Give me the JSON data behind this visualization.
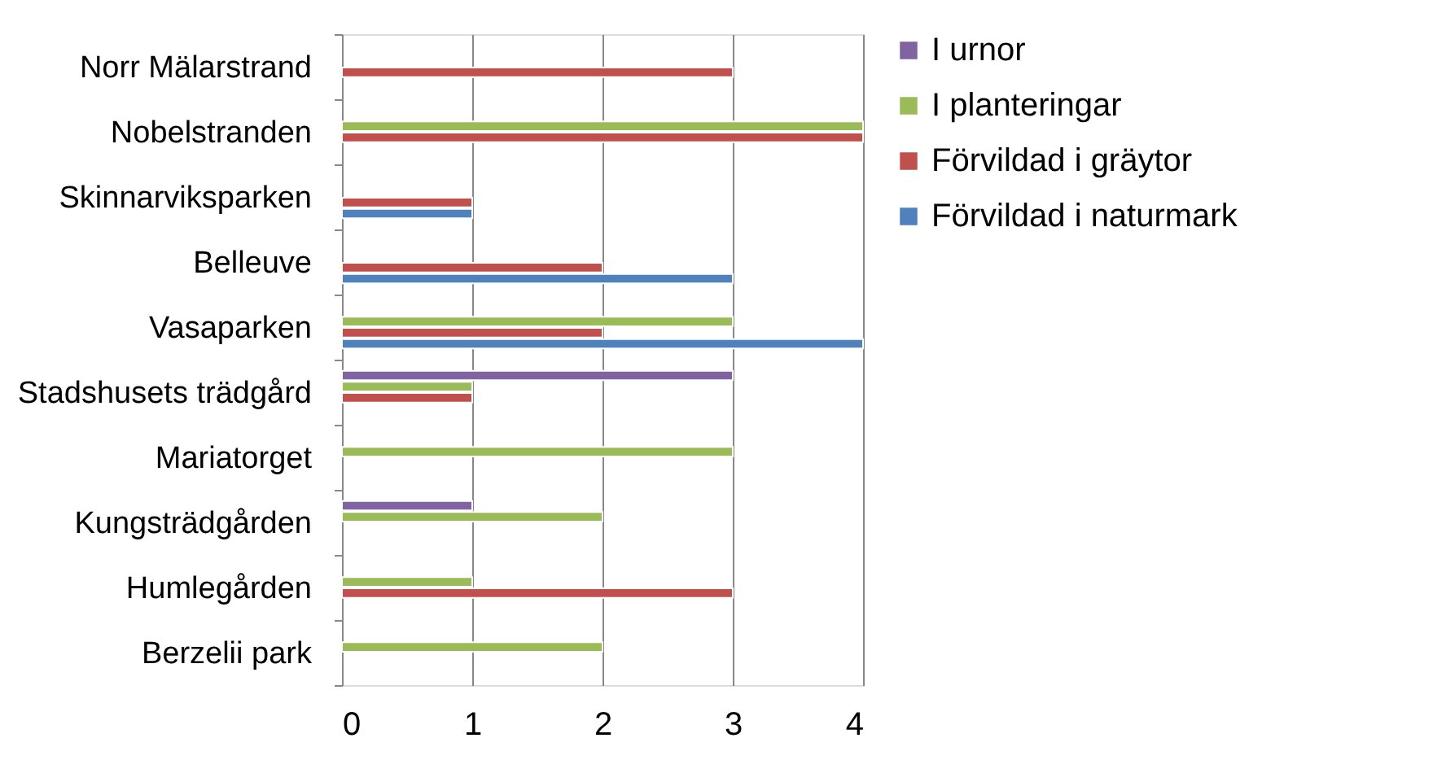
{
  "chart_data": {
    "type": "bar",
    "orientation": "horizontal",
    "categories": [
      "Norr Mälarstrand",
      "Nobelstranden",
      "Skinnarviksparken",
      "Belleuve",
      "Vasaparken",
      "Stadshusets trädgård",
      "Mariatorget",
      "Kungsträdgården",
      "Humlegården",
      "Berzelii park"
    ],
    "series": [
      {
        "name": "I urnor",
        "color": "#8064a2",
        "values": [
          null,
          null,
          null,
          null,
          null,
          3,
          null,
          1,
          null,
          null
        ]
      },
      {
        "name": "I planteringar",
        "color": "#9bbb59",
        "values": [
          null,
          4,
          null,
          null,
          3,
          1,
          3,
          2,
          1,
          2
        ]
      },
      {
        "name": "Förvildad i gräytor",
        "color": "#c0504d",
        "values": [
          3,
          4,
          1,
          2,
          2,
          1,
          null,
          null,
          3,
          null
        ]
      },
      {
        "name": "Förvildad i naturmark",
        "color": "#4f81bd",
        "values": [
          null,
          null,
          1,
          3,
          4,
          null,
          null,
          null,
          null,
          null
        ]
      }
    ],
    "xlim": [
      0,
      4
    ],
    "xticks": [
      0,
      1,
      2,
      3,
      4
    ],
    "grid": "x",
    "legend": "right"
  }
}
